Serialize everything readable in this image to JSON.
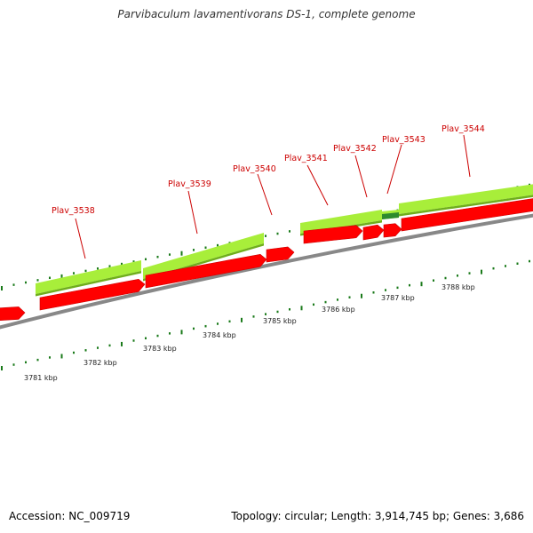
{
  "title": "Parvibaculum lavamentivorans DS-1, complete genome",
  "footer": {
    "accession": "Accession: NC_009719",
    "summary": "Topology: circular; Length: 3,914,745 bp; Genes: 3,686"
  },
  "colors": {
    "cds": "#ff0000",
    "gene": "#a8ee3a",
    "gene_dark": "#2e8b2e",
    "label": "#cc0000",
    "tick": "#1a7a1a",
    "backbone": "#888888"
  },
  "gene_labels": [
    "Plav_3538",
    "Plav_3539",
    "Plav_3540",
    "Plav_3541",
    "Plav_3542",
    "Plav_3543",
    "Plav_3544"
  ],
  "scale_labels": [
    "3781 kbp",
    "3782 kbp",
    "3783 kbp",
    "3784 kbp",
    "3785 kbp",
    "3786 kbp",
    "3787 kbp",
    "3788 kbp"
  ]
}
